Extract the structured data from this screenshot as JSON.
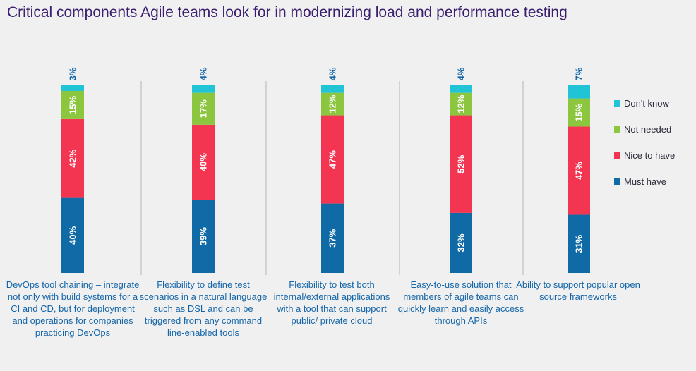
{
  "chart_data": {
    "type": "bar",
    "stacked": true,
    "orientation": "vertical",
    "title": "Critical components Agile teams look for in modernizing load and performance testing",
    "categories": [
      "DevOps tool chaining – integrate not only with build systems for a CI and CD, but for deployment and operations for companies practicing DevOps",
      "Flexibility to define test scenarios in a natural language such as DSL and can be triggered from any command line-enabled tools",
      "Flexibility to test both internal/external applications with a tool that can support public/ private cloud",
      "Easy-to-use solution that members of agile teams can quickly learn and easily access through APIs",
      "Ability to support popular open source frameworks"
    ],
    "series": [
      {
        "name": "Must have",
        "color": "#0f6aa5",
        "values": [
          40,
          39,
          37,
          32,
          31
        ],
        "labels": [
          "40%",
          "39%",
          "37%",
          "32%",
          "31%"
        ]
      },
      {
        "name": "Nice to have",
        "color": "#f33552",
        "values": [
          42,
          40,
          47,
          52,
          47
        ],
        "labels": [
          "42%",
          "40%",
          "47%",
          "52%",
          "47%"
        ]
      },
      {
        "name": "Not needed",
        "color": "#8cc63f",
        "values": [
          15,
          17,
          12,
          12,
          15
        ],
        "labels": [
          "15%",
          "17%",
          "12%",
          "12%",
          "15%"
        ]
      },
      {
        "name": "Don't know",
        "color": "#21c4d4",
        "values": [
          3,
          4,
          4,
          4,
          7
        ],
        "labels": [
          "3%",
          "4%",
          "4%",
          "4%",
          "7%"
        ]
      }
    ],
    "legend_position": "right",
    "legend_order": [
      "Don't know",
      "Not needed",
      "Nice to have",
      "Must have"
    ],
    "ylim": [
      0,
      100
    ],
    "grid": false
  }
}
